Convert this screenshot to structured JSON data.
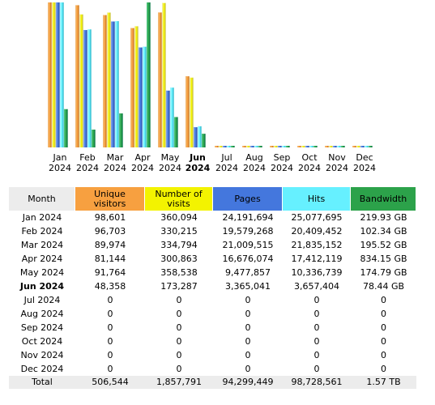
{
  "colors": {
    "unique": "#f7a040",
    "visits": "#f3f300",
    "pages": "#4477dd",
    "hits": "#66f0ff",
    "bandwidth": "#2ca24a"
  },
  "chart_data": {
    "type": "bar",
    "categories": [
      "Jan 2024",
      "Feb 2024",
      "Mar 2024",
      "Apr 2024",
      "May 2024",
      "Jun 2024",
      "Jul 2024",
      "Aug 2024",
      "Sep 2024",
      "Oct 2024",
      "Nov 2024",
      "Dec 2024"
    ],
    "series": [
      {
        "name": "Unique visitors",
        "values": [
          98601,
          96703,
          89974,
          81144,
          91764,
          48358,
          0,
          0,
          0,
          0,
          0,
          0
        ]
      },
      {
        "name": "Number of visits",
        "values": [
          360094,
          330215,
          334794,
          300863,
          358538,
          173287,
          0,
          0,
          0,
          0,
          0,
          0
        ]
      },
      {
        "name": "Pages",
        "values": [
          24191694,
          19579268,
          21009515,
          16676074,
          9477857,
          3365041,
          0,
          0,
          0,
          0,
          0,
          0
        ]
      },
      {
        "name": "Hits",
        "values": [
          25077695,
          20409452,
          21835152,
          17412119,
          10336739,
          3657404,
          0,
          0,
          0,
          0,
          0,
          0
        ]
      },
      {
        "name": "Bandwidth",
        "values": [
          219.93,
          102.34,
          195.52,
          834.15,
          174.79,
          78.44,
          0,
          0,
          0,
          0,
          0,
          0
        ]
      }
    ]
  },
  "axis": {
    "months": [
      {
        "m": "Jan",
        "y": "2024"
      },
      {
        "m": "Feb",
        "y": "2024"
      },
      {
        "m": "Mar",
        "y": "2024"
      },
      {
        "m": "Apr",
        "y": "2024"
      },
      {
        "m": "May",
        "y": "2024"
      },
      {
        "m": "Jun",
        "y": "2024"
      },
      {
        "m": "Jul",
        "y": "2024"
      },
      {
        "m": "Aug",
        "y": "2024"
      },
      {
        "m": "Sep",
        "y": "2024"
      },
      {
        "m": "Oct",
        "y": "2024"
      },
      {
        "m": "Nov",
        "y": "2024"
      },
      {
        "m": "Dec",
        "y": "2024"
      }
    ]
  },
  "table": {
    "headers": {
      "month": "Month",
      "unique_1": "Unique",
      "unique_2": "visitors",
      "visits_1": "Number of",
      "visits_2": "visits",
      "pages": "Pages",
      "hits": "Hits",
      "bandwidth": "Bandwidth"
    },
    "rows": [
      {
        "month": "Jan 2024",
        "unique": "98,601",
        "visits": "360,094",
        "pages": "24,191,694",
        "hits": "25,077,695",
        "bandwidth": "219.93 GB"
      },
      {
        "month": "Feb 2024",
        "unique": "96,703",
        "visits": "330,215",
        "pages": "19,579,268",
        "hits": "20,409,452",
        "bandwidth": "102.34 GB"
      },
      {
        "month": "Mar 2024",
        "unique": "89,974",
        "visits": "334,794",
        "pages": "21,009,515",
        "hits": "21,835,152",
        "bandwidth": "195.52 GB"
      },
      {
        "month": "Apr 2024",
        "unique": "81,144",
        "visits": "300,863",
        "pages": "16,676,074",
        "hits": "17,412,119",
        "bandwidth": "834.15 GB"
      },
      {
        "month": "May 2024",
        "unique": "91,764",
        "visits": "358,538",
        "pages": "9,477,857",
        "hits": "10,336,739",
        "bandwidth": "174.79 GB"
      },
      {
        "month": "Jun 2024",
        "unique": "48,358",
        "visits": "173,287",
        "pages": "3,365,041",
        "hits": "3,657,404",
        "bandwidth": "78.44 GB"
      },
      {
        "month": "Jul 2024",
        "unique": "0",
        "visits": "0",
        "pages": "0",
        "hits": "0",
        "bandwidth": "0"
      },
      {
        "month": "Aug 2024",
        "unique": "0",
        "visits": "0",
        "pages": "0",
        "hits": "0",
        "bandwidth": "0"
      },
      {
        "month": "Sep 2024",
        "unique": "0",
        "visits": "0",
        "pages": "0",
        "hits": "0",
        "bandwidth": "0"
      },
      {
        "month": "Oct 2024",
        "unique": "0",
        "visits": "0",
        "pages": "0",
        "hits": "0",
        "bandwidth": "0"
      },
      {
        "month": "Nov 2024",
        "unique": "0",
        "visits": "0",
        "pages": "0",
        "hits": "0",
        "bandwidth": "0"
      },
      {
        "month": "Dec 2024",
        "unique": "0",
        "visits": "0",
        "pages": "0",
        "hits": "0",
        "bandwidth": "0"
      }
    ],
    "total": {
      "label": "Total",
      "unique": "506,544",
      "visits": "1,857,791",
      "pages": "94,299,449",
      "hits": "98,728,561",
      "bandwidth": "1.57 TB"
    }
  }
}
